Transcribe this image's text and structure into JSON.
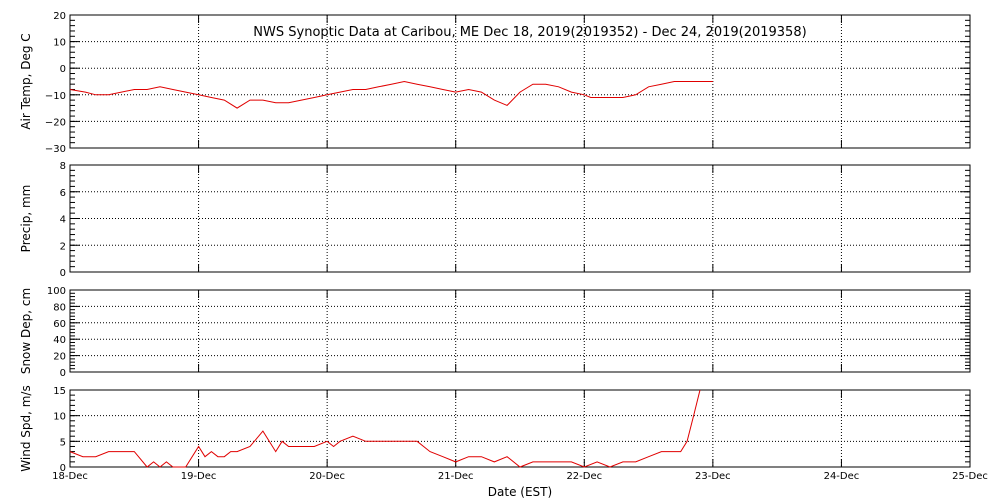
{
  "chart_data": {
    "type": "line",
    "title": "NWS Synoptic Data at Caribou, ME   Dec 18, 2019(2019352) - Dec 24, 2019(2019358)",
    "xlabel": "Date (EST)",
    "x_ticks": [
      "18-Dec",
      "19-Dec",
      "20-Dec",
      "21-Dec",
      "22-Dec",
      "23-Dec",
      "24-Dec",
      "25-Dec"
    ],
    "xlim": [
      0,
      7
    ],
    "grid": true,
    "series_color": "#e00000",
    "panels": [
      {
        "id": "airtemp",
        "ylabel": "Air Temp, Deg C",
        "ylim": [
          -30,
          20
        ],
        "y_ticks": [
          "20",
          "10",
          "0",
          "−10",
          "−20",
          "−30"
        ],
        "y_tick_values": [
          20,
          10,
          0,
          -10,
          -20,
          -30
        ],
        "series": [
          {
            "x": [
              0,
              0.12,
              0.2,
              0.3,
              0.4,
              0.5,
              0.6,
              0.7,
              0.8,
              0.9,
              1.0,
              1.1,
              1.2,
              1.3,
              1.4,
              1.5,
              1.6,
              1.7,
              1.8,
              1.9,
              2.0,
              2.1,
              2.2,
              2.3,
              2.4,
              2.5,
              2.6,
              2.7,
              2.8,
              2.9,
              3.0,
              3.1,
              3.2,
              3.3,
              3.4,
              3.5,
              3.6,
              3.7,
              3.8,
              3.9,
              4.0,
              4.05,
              4.1,
              4.2,
              4.3,
              4.4,
              4.5,
              4.6,
              4.7,
              4.8,
              4.9,
              5.0
            ],
            "y": [
              -8,
              -9,
              -10,
              -10,
              -9,
              -8,
              -8,
              -7,
              -8,
              -9,
              -10,
              -11,
              -12,
              -15,
              -12,
              -12,
              -13,
              -13,
              -12,
              -11,
              -10,
              -9,
              -8,
              -8,
              -7,
              -6,
              -5,
              -6,
              -7,
              -8,
              -9,
              -8,
              -9,
              -12,
              -14,
              -9,
              -6,
              -6,
              -7,
              -9,
              -10,
              -11,
              -11,
              -11,
              -11,
              -10,
              -7,
              -6,
              -5,
              -5,
              -5,
              -5
            ]
          }
        ]
      },
      {
        "id": "precip",
        "ylabel": "Precip, mm",
        "ylim": [
          0,
          8
        ],
        "y_ticks": [
          "8",
          "6",
          "4",
          "2",
          "0"
        ],
        "y_tick_values": [
          8,
          6,
          4,
          2,
          0
        ],
        "series": []
      },
      {
        "id": "snowdep",
        "ylabel": "Snow Dep, cm",
        "ylim": [
          0,
          100
        ],
        "y_ticks": [
          "100",
          "80",
          "60",
          "40",
          "20",
          "0"
        ],
        "y_tick_values": [
          100,
          80,
          60,
          40,
          20,
          0
        ],
        "series": []
      },
      {
        "id": "windspd",
        "ylabel": "Wind Spd, m/s",
        "ylim": [
          0,
          15
        ],
        "y_ticks": [
          "15",
          "10",
          "5",
          "0"
        ],
        "y_tick_values": [
          15,
          10,
          5,
          0
        ],
        "series": [
          {
            "x": [
              0,
              0.1,
              0.2,
              0.3,
              0.4,
              0.5,
              0.6,
              0.65,
              0.7,
              0.75,
              0.8,
              0.85,
              0.9,
              1.0,
              1.05,
              1.1,
              1.15,
              1.2,
              1.25,
              1.3,
              1.4,
              1.5,
              1.6,
              1.65,
              1.7,
              1.8,
              1.9,
              2.0,
              2.05,
              2.1,
              2.2,
              2.3,
              2.4,
              2.5,
              2.6,
              2.7,
              2.75,
              2.8,
              2.9,
              3.0,
              3.1,
              3.2,
              3.3,
              3.4,
              3.5,
              3.6,
              3.7,
              3.8,
              3.9,
              4.0,
              4.1,
              4.2,
              4.3,
              4.4,
              4.5,
              4.6,
              4.7,
              4.75,
              4.8,
              4.85,
              4.9
            ],
            "y": [
              3,
              2,
              2,
              3,
              3,
              3,
              0,
              1,
              0,
              1,
              0,
              0,
              0,
              4,
              2,
              3,
              2,
              2,
              3,
              3,
              4,
              7,
              3,
              5,
              4,
              4,
              4,
              5,
              4,
              5,
              6,
              5,
              5,
              5,
              5,
              5,
              4,
              3,
              2,
              1,
              2,
              2,
              1,
              2,
              0,
              1,
              1,
              1,
              1,
              0,
              1,
              0,
              1,
              1,
              2,
              3,
              3,
              3,
              5,
              10,
              15
            ]
          }
        ]
      }
    ]
  }
}
